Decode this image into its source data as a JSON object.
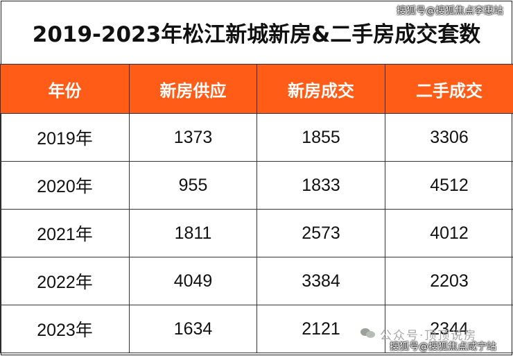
{
  "title": "2019-2023年松江新城新房&二手房成交套数",
  "watermark_top": "搜狐号@搜狐焦点李惠站",
  "watermark_gzh": "公众号·顶顶说房",
  "watermark_bottom": "搜狐号@搜狐焦点咸宁站",
  "table": {
    "headers": [
      "年份",
      "新房供应",
      "新房成交",
      "二手成交"
    ],
    "rows": [
      [
        "2019年",
        "1373",
        "1855",
        "3306"
      ],
      [
        "2020年",
        "955",
        "1833",
        "4512"
      ],
      [
        "2021年",
        "1811",
        "2573",
        "4012"
      ],
      [
        "2022年",
        "4049",
        "3384",
        "2203"
      ],
      [
        "2023年",
        "1634",
        "2121",
        "2344"
      ]
    ]
  },
  "colors": {
    "header_bg": "#ff5c17",
    "header_text": "#ffffff",
    "border": "#333333"
  }
}
